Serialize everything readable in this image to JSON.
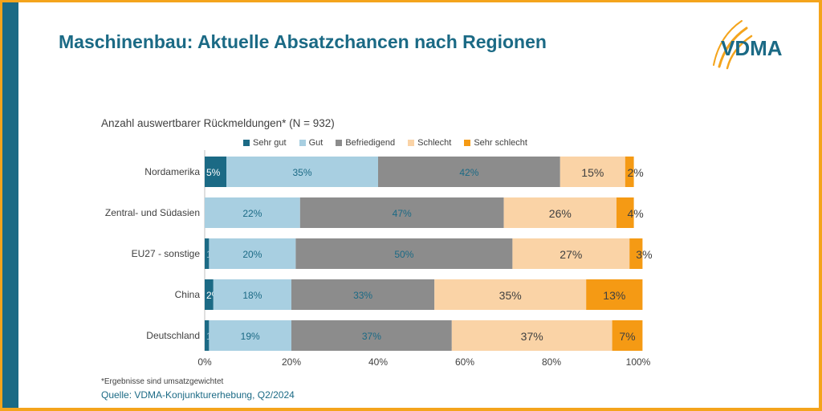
{
  "header": {
    "title": "Maschinenbau: Aktuelle Absatzchancen nach Regionen",
    "logo_text": "VDMA"
  },
  "footer": {
    "footnote": "*Ergebnisse sind umsatzgewichtet",
    "source": "Quelle: VDMA-Konjunkturerhebung, Q2/2024"
  },
  "colors": {
    "frame": "#f4a41c",
    "side_bar": "#1b6a85",
    "title": "#1b6a85",
    "logo_arc": "#f4a41c",
    "logo_text": "#1b6a85"
  },
  "chart_data": {
    "type": "bar",
    "orientation": "horizontal",
    "stacked": true,
    "title": "Anzahl auswertbarer Rückmeldungen* (N = 932)",
    "categories": [
      "Nordamerika",
      "Zentral- und Südasien",
      "EU27 - sonstige",
      "China",
      "Deutschland"
    ],
    "series": [
      {
        "name": "Sehr gut",
        "color": "#1b6a85",
        "values": [
          5,
          0,
          1,
          2,
          1
        ]
      },
      {
        "name": "Gut",
        "color": "#a8cfe1",
        "values": [
          35,
          22,
          20,
          18,
          19
        ]
      },
      {
        "name": "Befriedigend",
        "color": "#8c8c8c",
        "values": [
          42,
          47,
          50,
          33,
          37
        ]
      },
      {
        "name": "Schlecht",
        "color": "#fad3a6",
        "values": [
          15,
          26,
          27,
          35,
          37
        ]
      },
      {
        "name": "Sehr schlecht",
        "color": "#f59a14",
        "values": [
          2,
          4,
          3,
          13,
          7
        ]
      }
    ],
    "x_ticks": [
      "0%",
      "20%",
      "40%",
      "60%",
      "80%",
      "100%"
    ],
    "xlim": [
      0,
      100
    ],
    "grid": false,
    "legend_position": "top",
    "data_label_format": "{v}%"
  }
}
